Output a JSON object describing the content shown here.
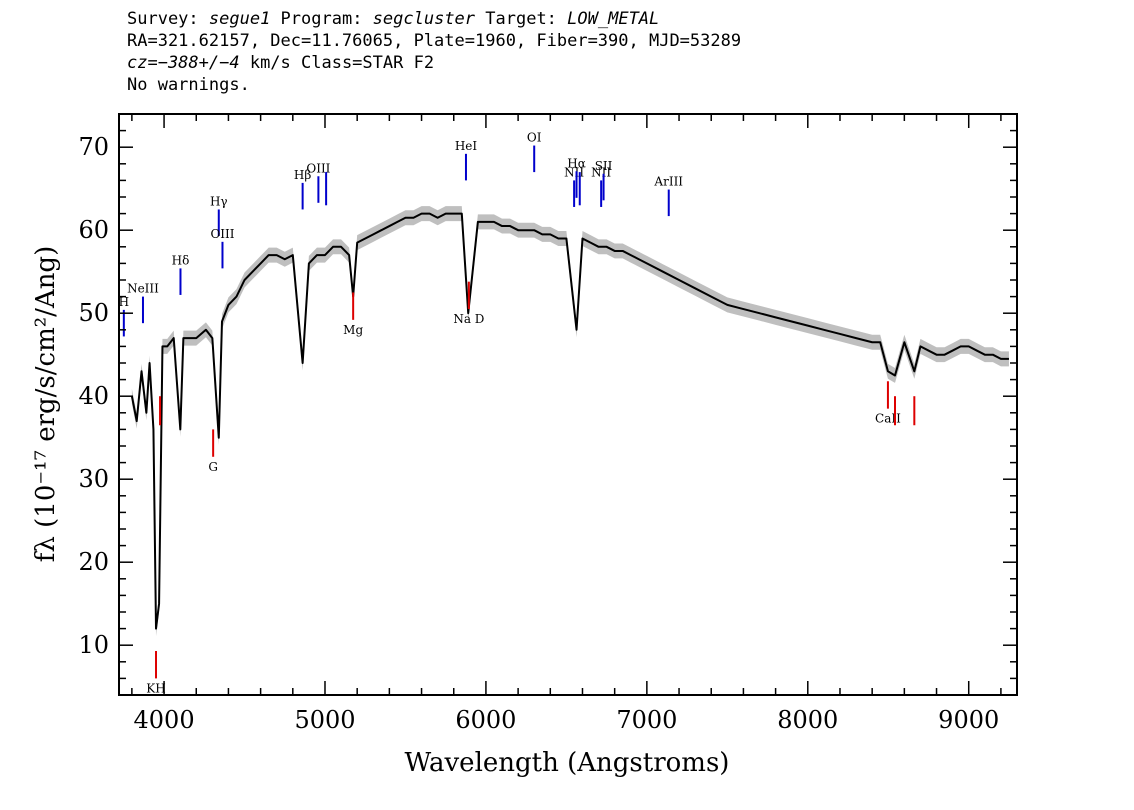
{
  "header": {
    "line1": {
      "survey_label": "Survey: ",
      "survey": "segue1",
      "program_label": " Program: ",
      "program": "segcluster",
      "target_label": " Target: ",
      "target": "LOW_METAL"
    },
    "line2": "RA=321.62157, Dec=11.76065, Plate=1960, Fiber=390, MJD=53289",
    "line3": {
      "cz": "cz=−388+/−4",
      "rest": " km/s Class=STAR F2"
    },
    "line4": "No warnings."
  },
  "chart_data": {
    "type": "line",
    "xlabel": "Wavelength (Angstroms)",
    "ylabel": "fλ (10⁻¹⁷ erg/s/cm²/Ang)",
    "xlim": [
      3720,
      9300
    ],
    "ylim": [
      4,
      74
    ],
    "x_ticks": [
      4000,
      5000,
      6000,
      7000,
      8000,
      9000
    ],
    "y_ticks": [
      10,
      20,
      30,
      40,
      50,
      60,
      70
    ],
    "grid": false,
    "colors": {
      "spectrum": "#000000",
      "error_band": "#bfbfbf",
      "emission_lines": "#0000cc",
      "absorption_lines": "#dd0000"
    },
    "series": [
      {
        "x": [
          3800,
          3830,
          3860,
          3890,
          3910,
          3934,
          3950,
          3969,
          3990,
          4020,
          4060,
          4101,
          4120,
          4160,
          4200,
          4260,
          4300,
          4340,
          4360,
          4400,
          4450,
          4500,
          4550,
          4600,
          4650,
          4700,
          4750,
          4800,
          4861,
          4900,
          4950,
          5000,
          5050,
          5100,
          5150,
          5175,
          5200,
          5250,
          5300,
          5350,
          5400,
          5450,
          5500,
          5550,
          5600,
          5650,
          5700,
          5750,
          5800,
          5850,
          5890,
          5950,
          6000,
          6050,
          6100,
          6150,
          6200,
          6250,
          6300,
          6350,
          6400,
          6450,
          6500,
          6563,
          6600,
          6650,
          6700,
          6750,
          6800,
          6850,
          6900,
          6950,
          7000,
          7100,
          7200,
          7300,
          7400,
          7500,
          7600,
          7700,
          7800,
          7900,
          8000,
          8100,
          8200,
          8300,
          8400,
          8450,
          8498,
          8542,
          8600,
          8662,
          8700,
          8750,
          8800,
          8850,
          8900,
          8950,
          9000,
          9050,
          9100,
          9150,
          9200,
          9250
        ],
        "y": [
          40,
          37,
          43,
          38,
          44,
          36,
          12,
          15,
          46,
          46,
          47,
          36,
          47,
          47,
          47,
          48,
          47,
          35,
          49,
          51,
          52,
          54,
          55,
          56,
          57,
          57,
          56.5,
          57,
          44,
          56,
          57,
          57,
          58,
          58,
          57,
          52,
          58.5,
          59,
          59.5,
          60,
          60.5,
          61,
          61.5,
          61.5,
          62,
          62,
          61.5,
          62,
          62,
          62,
          50,
          61,
          61,
          61,
          60.5,
          60.5,
          60,
          60,
          60,
          59.5,
          59.5,
          59,
          59,
          48,
          59,
          58.5,
          58,
          58,
          57.5,
          57.5,
          57,
          56.5,
          56,
          55,
          54,
          53,
          52,
          51,
          50.5,
          50,
          49.5,
          49,
          48.5,
          48,
          47.5,
          47,
          46.5,
          46.5,
          43,
          42.5,
          46.5,
          43,
          46,
          45.5,
          45,
          45,
          45.5,
          46,
          46,
          45.5,
          45,
          45,
          44.5,
          44.5
        ]
      }
    ],
    "emission_lines": [
      {
        "label": "H",
        "x": 3750,
        "label_y": 51.2
      },
      {
        "label": "NeIII",
        "x": 3869,
        "label_y": 52.8
      },
      {
        "label": "Hδ",
        "x": 4102,
        "label_y": 56.2
      },
      {
        "label": "Hγ",
        "x": 4340,
        "label_y": 63.3
      },
      {
        "label": "OIII",
        "x": 4363,
        "label_y": 59.4
      },
      {
        "label": "Hβ",
        "x": 4861,
        "label_y": 66.5
      },
      {
        "label": "OIII",
        "x": 4959,
        "label_y": 67.3
      },
      {
        "label": "",
        "x": 5007,
        "label_y": 0
      },
      {
        "label": "HeI",
        "x": 5876,
        "label_y": 70
      },
      {
        "label": "OI",
        "x": 6300,
        "label_y": 71
      },
      {
        "label": "NII",
        "x": 6548,
        "label_y": 66.8
      },
      {
        "label": "Hα",
        "x": 6563,
        "label_y": 67.9
      },
      {
        "label": "",
        "x": 6583,
        "label_y": 0
      },
      {
        "label": "NII",
        "x": 6716,
        "label_y": 66.8
      },
      {
        "label": "SII",
        "x": 6731,
        "label_y": 67.6
      },
      {
        "label": "ArIII",
        "x": 7136,
        "label_y": 65.7
      }
    ],
    "absorption_lines": [
      {
        "label": "KH",
        "x": 3950,
        "label_y": 4.8
      },
      {
        "label": "",
        "x": 3975,
        "label_y": 0
      },
      {
        "label": "G",
        "x": 4305,
        "label_y": 31.5
      },
      {
        "label": "Mg",
        "x": 5175,
        "label_y": 48
      },
      {
        "label": "Na D",
        "x": 5894,
        "label_y": 49.3
      },
      {
        "label": "CaII",
        "x": 8498,
        "label_y": 37.3
      },
      {
        "label": "",
        "x": 8542,
        "label_y": 0
      },
      {
        "label": "",
        "x": 8662,
        "label_y": 0
      }
    ]
  }
}
